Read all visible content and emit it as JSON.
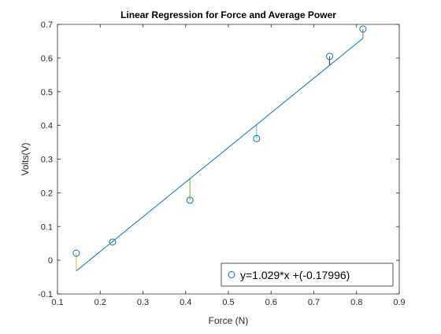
{
  "chart_data": {
    "type": "scatter",
    "title": "Linear Regression for Force and Average Power",
    "xlabel": "Force (N)",
    "ylabel": "Volts(V)",
    "xlim": [
      0.1,
      0.9
    ],
    "ylim": [
      -0.1,
      0.7
    ],
    "xticks": [
      0.1,
      0.2,
      0.3,
      0.4,
      0.5,
      0.6,
      0.7,
      0.8,
      0.9
    ],
    "yticks": [
      -0.1,
      0,
      0.1,
      0.2,
      0.3,
      0.4,
      0.5,
      0.6,
      0.7
    ],
    "xtick_labels": [
      "0.1",
      "0.2",
      "0.3",
      "0.4",
      "0.5",
      "0.6",
      "0.7",
      "0.8",
      "0.9"
    ],
    "ytick_labels": [
      "-0.1",
      "0",
      "0.1",
      "0.2",
      "0.3",
      "0.4",
      "0.5",
      "0.6",
      "0.7"
    ],
    "grid": false,
    "legend_position": "bottom-right",
    "series": [
      {
        "name": "y=1.029*x +(-0.17996)",
        "x": [
          0.144,
          0.229,
          0.41,
          0.566,
          0.737,
          0.815
        ],
        "y": [
          0.021,
          0.054,
          0.178,
          0.361,
          0.605,
          0.686
        ],
        "marker": "circle",
        "color": "#0072BD"
      }
    ],
    "regression": {
      "slope": 1.029,
      "intercept": -0.17996,
      "color": "#0072BD"
    },
    "residual_colors": [
      "#EDB120",
      "#7E2F8E",
      "#77AC30",
      "#4DBEEE",
      "#A2142F",
      "#D95319"
    ]
  }
}
